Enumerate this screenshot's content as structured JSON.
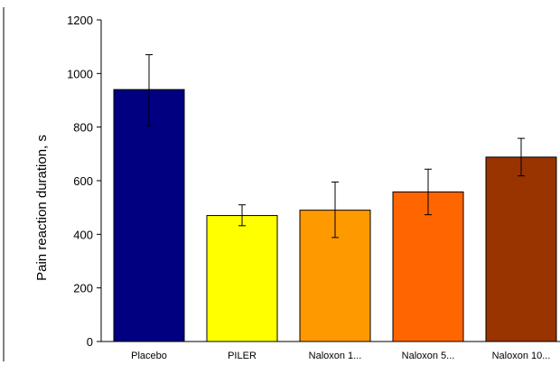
{
  "chart_data": {
    "type": "bar",
    "ylabel": "Pain reaction duration, s",
    "xlabel": "",
    "ylim": [
      0,
      1200
    ],
    "yticks": [
      0,
      200,
      400,
      600,
      800,
      1000,
      1200
    ],
    "categories": [
      "Placebo",
      "PILER",
      "Naloxon 1...",
      "Naloxon 5...",
      "Naloxon 10..."
    ],
    "values": [
      940,
      470,
      490,
      558,
      688
    ],
    "error_low": [
      805,
      432,
      388,
      473,
      618
    ],
    "error_high": [
      1070,
      510,
      595,
      643,
      758
    ],
    "colors": [
      "#000080",
      "#ffff00",
      "#ff9900",
      "#ff6600",
      "#993300"
    ],
    "grid": false
  }
}
